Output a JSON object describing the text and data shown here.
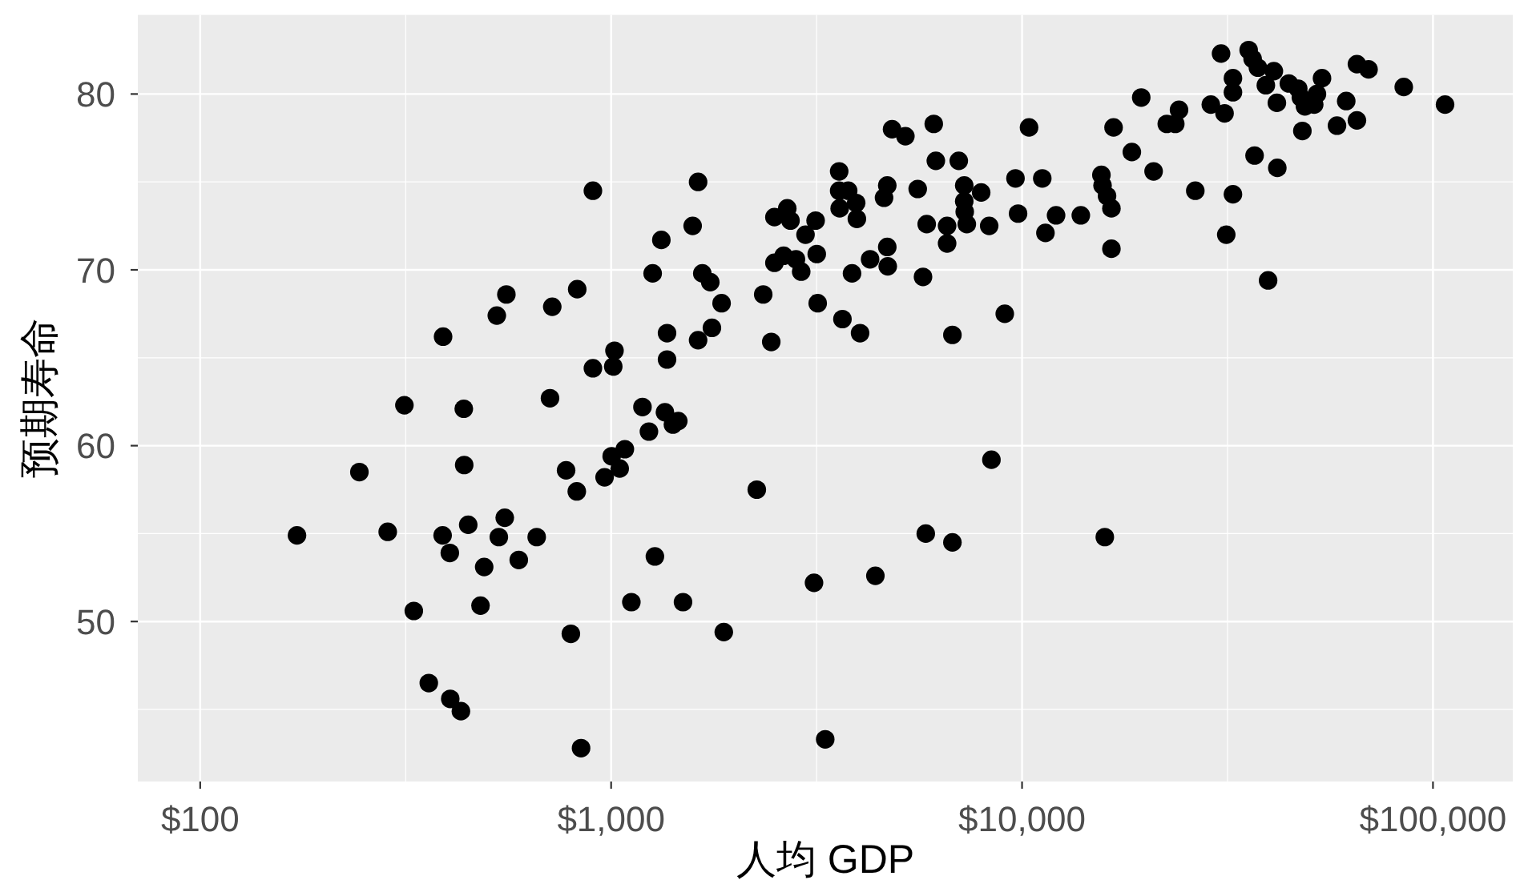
{
  "chart_data": {
    "type": "scatter",
    "xlabel": "人均 GDP",
    "ylabel": "预期寿命",
    "color": "#000000",
    "marker": "circle",
    "log": "x",
    "grid": true,
    "xlim": [
      70.5,
      156400
    ],
    "ylim": [
      40.9,
      84.5
    ],
    "xticks": [
      {
        "value": 100,
        "label": "$100"
      },
      {
        "value": 1000,
        "label": "$1,000"
      },
      {
        "value": 10000,
        "label": "$10,000"
      },
      {
        "value": 100000,
        "label": "$100,000"
      }
    ],
    "yticks": [
      50,
      60,
      70,
      80
    ],
    "x": [
      172,
      244,
      286,
      314,
      331,
      360,
      390,
      389,
      405,
      406,
      431,
      438,
      439,
      449,
      481,
      491,
      527,
      533,
      551,
      556,
      596,
      659,
      710,
      719,
      777,
      798,
      825,
      827,
      845,
      903,
      903,
      964,
      1003,
      1012,
      1019,
      1049,
      1080,
      1120,
      1192,
      1236,
      1262,
      1278,
      1325,
      1352,
      1368,
      1368,
      1414,
      1457,
      1496,
      1579,
      1628,
      1628,
      1667,
      1743,
      1759,
      1857,
      1880,
      2262,
      2345,
      2453,
      2497,
      2497,
      2629,
      2683,
      2732,
      2817,
      2901,
      2972,
      3117,
      3145,
      3165,
      3182,
      3319,
      3589,
      3589,
      3599,
      3655,
      3775,
      3857,
      3948,
      3963,
      4035,
      4268,
      4396,
      4615,
      4699,
      4699,
      4712,
      4827,
      5201,
      5573,
      5741,
      5830,
      5861,
      6097,
      6169,
      6571,
      6571,
      6769,
      6769,
      7015,
      7233,
      7233,
      7253,
      7338,
      7953,
      8318,
      8423,
      9077,
      9639,
      9779,
      10400,
      11200,
      11400,
      12100,
      13900,
      15600,
      15700,
      15900,
      16100,
      16500,
      16500,
      16700,
      18500,
      19500,
      20900,
      22500,
      23600,
      24100,
      26400,
      28800,
      30500,
      31100,
      31400,
      32600,
      32600,
      32600,
      35600,
      36400,
      36800,
      37500,
      39200,
      39700,
      41000,
      41700,
      41800,
      44600,
      47000,
      47700,
      48100,
      48800,
      51400,
      52200,
      53700,
      58400,
      61500,
      65300,
      65300,
      69700,
      84900,
      107000
    ],
    "values": [
      54.9,
      58.5,
      55.1,
      62.3,
      50.6,
      46.5,
      66.2,
      54.9,
      53.9,
      45.6,
      44.9,
      62.1,
      58.9,
      55.5,
      50.9,
      53.1,
      67.4,
      54.8,
      55.9,
      68.6,
      53.5,
      54.8,
      62.7,
      67.9,
      58.6,
      49.3,
      57.4,
      68.9,
      42.8,
      74.5,
      64.4,
      58.2,
      59.4,
      64.5,
      65.4,
      58.7,
      59.8,
      51.1,
      62.2,
      60.8,
      69.8,
      53.7,
      71.7,
      61.9,
      66.4,
      64.9,
      61.2,
      61.4,
      51.1,
      72.5,
      75.0,
      66.0,
      69.8,
      69.3,
      66.7,
      68.1,
      49.4,
      57.5,
      68.6,
      65.9,
      73.0,
      70.4,
      70.8,
      73.5,
      72.8,
      70.6,
      69.9,
      72.0,
      52.2,
      72.8,
      70.9,
      68.1,
      43.3,
      75.6,
      74.5,
      73.5,
      67.2,
      74.5,
      69.8,
      73.8,
      72.9,
      66.4,
      70.6,
      52.6,
      74.1,
      74.8,
      71.3,
      70.2,
      78.0,
      77.6,
      74.6,
      69.6,
      55.0,
      72.6,
      78.3,
      76.2,
      72.5,
      71.5,
      66.3,
      54.5,
      76.2,
      74.8,
      73.9,
      73.3,
      72.6,
      74.4,
      72.5,
      59.2,
      67.5,
      75.2,
      73.2,
      78.1,
      75.2,
      72.1,
      73.1,
      73.1,
      75.4,
      74.8,
      54.8,
      74.2,
      73.5,
      71.2,
      78.1,
      76.7,
      79.8,
      75.6,
      78.3,
      78.3,
      79.1,
      74.5,
      79.4,
      82.3,
      78.9,
      72.0,
      80.9,
      80.1,
      74.3,
      82.5,
      82.0,
      76.5,
      81.5,
      80.5,
      69.4,
      81.3,
      79.5,
      75.8,
      80.6,
      80.3,
      79.8,
      77.9,
      79.3,
      79.4,
      80.0,
      80.9,
      78.2,
      79.6,
      81.7,
      78.5,
      81.4,
      80.4,
      79.4
    ]
  }
}
